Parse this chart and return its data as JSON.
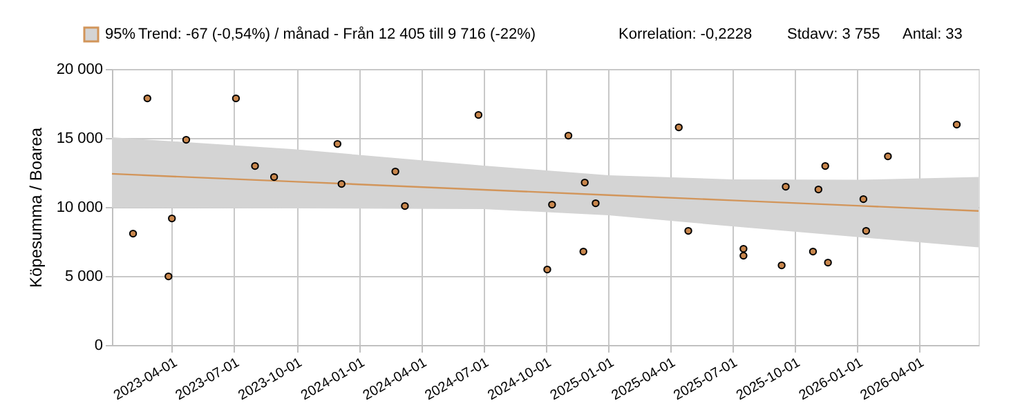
{
  "chart_data": {
    "type": "scatter",
    "ylabel": "Köpesumma / Boarea",
    "annotations": [
      "Trend: -67 (-0,54%) / månad  -  Från 12 405 till 9 716 (-22%)",
      "Korrelation: -0,2228",
      "Stdavv: 3 755",
      "Antal: 33"
    ],
    "xlim": [
      "2023-01-03",
      "2026-06-28"
    ],
    "xticks": [
      "2023-04-01",
      "2023-07-01",
      "2023-10-01",
      "2024-01-01",
      "2024-04-01",
      "2024-07-01",
      "2024-10-01",
      "2025-01-01",
      "2025-04-01",
      "2025-07-01",
      "2025-10-01",
      "2026-01-01",
      "2026-04-01"
    ],
    "ylim": [
      0,
      20000
    ],
    "yticks": [
      0,
      {
        "value": 5000,
        "label": "5 000"
      },
      {
        "value": 10000,
        "label": "10 000"
      },
      {
        "value": 15000,
        "label": "15 000"
      },
      {
        "value": 20000,
        "label": "20 000"
      }
    ],
    "grid": true,
    "legend": "top left",
    "marker": "circle",
    "series": [
      {
        "color": "#c8864c",
        "x": [
          "2023-02-03",
          "2023-02-24",
          "2023-03-27",
          "2023-04-01",
          "2023-04-22",
          "2023-07-04",
          "2023-08-01",
          "2023-08-29",
          "2023-11-30",
          "2023-12-06",
          "2024-02-23",
          "2024-03-08",
          "2024-06-24",
          "2024-10-03",
          "2024-10-10",
          "2024-11-03",
          "2024-11-25",
          "2024-11-27",
          "2024-12-13",
          "2025-04-14",
          "2025-04-28",
          "2025-07-18",
          "2025-07-18",
          "2025-09-12",
          "2025-09-18",
          "2025-10-28",
          "2025-11-05",
          "2025-11-15",
          "2025-11-19",
          "2026-01-10",
          "2026-01-14",
          "2026-02-15",
          "2026-05-27"
        ],
        "values": [
          8070,
          17870,
          4970,
          9170,
          14870,
          17870,
          12970,
          12170,
          14570,
          11670,
          12570,
          10070,
          16670,
          5470,
          10170,
          15170,
          6770,
          11770,
          10270,
          15770,
          8270,
          6970,
          6470,
          5770,
          11470,
          6770,
          11270,
          12970,
          5970,
          10570,
          8270,
          13670,
          15970
        ]
      },
      {
        "type": "line",
        "marker": "none",
        "name": "95%",
        "color": "#d2955a",
        "x": [
          "2023-01-03",
          "2023-10-01",
          "2024-07-01",
          "2025-01-01",
          "2025-07-01",
          "2026-01-01",
          "2026-06-28"
        ],
        "values": [
          12405,
          11832,
          11253,
          10864,
          10481,
          10092,
          9716
        ],
        "lower": [
          9950,
          9900,
          9850,
          9400,
          8600,
          7830,
          7070
        ],
        "upper": [
          15050,
          14170,
          13000,
          12300,
          12000,
          11970,
          12170
        ]
      }
    ]
  }
}
